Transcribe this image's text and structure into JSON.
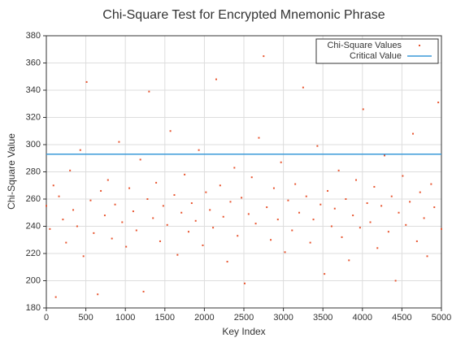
{
  "chart_data": {
    "type": "scatter",
    "title": "Chi-Square Test for Encrypted Mnemonic Phrase",
    "xlabel": "Key Index",
    "ylabel": "Chi-Square Value",
    "xlim": [
      0,
      5000
    ],
    "xticks": [
      0,
      500,
      1000,
      1500,
      2000,
      2500,
      3000,
      3500,
      4000,
      4500,
      5000
    ],
    "ylim": [
      180,
      380
    ],
    "yticks": [
      180,
      200,
      220,
      240,
      260,
      280,
      300,
      320,
      340,
      360,
      380
    ],
    "grid": true,
    "legend": "upper right",
    "series": [
      {
        "name": "Chi-Square Values",
        "color": "#e8552f",
        "type": "scatter",
        "x": [
          0,
          45,
          90,
          120,
          160,
          210,
          250,
          300,
          340,
          390,
          430,
          470,
          510,
          560,
          600,
          650,
          690,
          740,
          780,
          830,
          870,
          920,
          960,
          1010,
          1050,
          1100,
          1140,
          1190,
          1230,
          1280,
          1300,
          1350,
          1390,
          1440,
          1480,
          1530,
          1570,
          1620,
          1660,
          1710,
          1750,
          1800,
          1840,
          1890,
          1930,
          1980,
          2020,
          2070,
          2110,
          2150,
          2200,
          2240,
          2290,
          2330,
          2380,
          2420,
          2470,
          2510,
          2560,
          2600,
          2650,
          2690,
          2750,
          2790,
          2840,
          2880,
          2930,
          2970,
          3020,
          3060,
          3110,
          3150,
          3200,
          3250,
          3290,
          3340,
          3380,
          3430,
          3470,
          3520,
          3560,
          3610,
          3650,
          3700,
          3740,
          3790,
          3830,
          3880,
          3920,
          3970,
          4010,
          4060,
          4100,
          4150,
          4190,
          4240,
          4280,
          4330,
          4370,
          4420,
          4460,
          4510,
          4550,
          4600,
          4640,
          4690,
          4730,
          4780,
          4820,
          4870,
          4910,
          4960,
          5000
        ],
        "values": [
          255,
          238,
          270,
          188,
          262,
          245,
          228,
          281,
          252,
          240,
          296,
          218,
          346,
          259,
          235,
          190,
          266,
          248,
          274,
          231,
          256,
          302,
          243,
          225,
          268,
          251,
          237,
          289,
          192,
          260,
          339,
          246,
          272,
          229,
          255,
          241,
          310,
          263,
          219,
          250,
          278,
          236,
          257,
          244,
          296,
          226,
          265,
          252,
          239,
          348,
          270,
          247,
          214,
          258,
          283,
          233,
          261,
          198,
          249,
          276,
          242,
          305,
          365,
          254,
          230,
          268,
          245,
          287,
          221,
          259,
          237,
          271,
          250,
          342,
          262,
          228,
          245,
          299,
          256,
          205,
          266,
          240,
          253,
          281,
          232,
          260,
          215,
          248,
          274,
          239,
          326,
          257,
          243,
          269,
          224,
          255,
          292,
          236,
          262,
          200,
          250,
          277,
          241,
          258,
          308,
          229,
          265,
          246,
          218,
          271,
          254,
          331,
          238
        ]
      },
      {
        "name": "Critical Value",
        "color": "#3a9ad9",
        "type": "line",
        "x": [
          0,
          5000
        ],
        "values": [
          293,
          293
        ]
      }
    ]
  }
}
